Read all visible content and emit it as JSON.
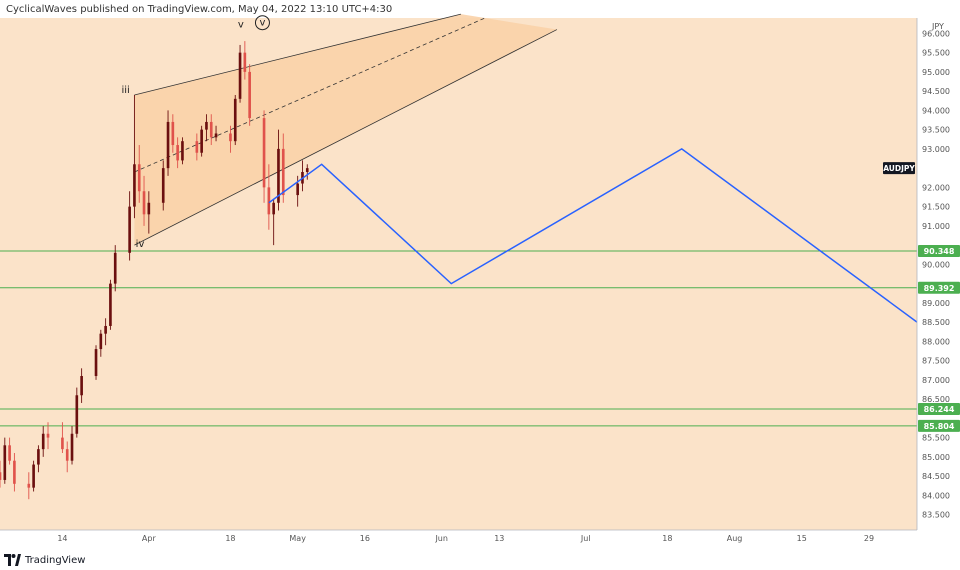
{
  "header": {
    "published_text": "CyclicalWaves published on TradingView.com, May 04, 2022 13:10 UTC+4:30"
  },
  "footer": {
    "brand": "TradingView"
  },
  "colors": {
    "background": "#fbe3c9",
    "channel_fill": "#f9d2a8",
    "up_candle": "#6b0f0f",
    "down_candle": "#e0524b",
    "projection": "#2962ff",
    "support_line": "#4caf50",
    "label_green": "#4caf50",
    "symbol_badge": "#131722"
  },
  "chart_data": {
    "type": "candlestick",
    "symbol": "AUDJPY",
    "currency": "JPY",
    "ylim": [
      83.1,
      96.4
    ],
    "y_ticks": [
      83.5,
      84.0,
      84.5,
      85.0,
      85.5,
      86.0,
      86.5,
      87.0,
      87.5,
      88.0,
      88.5,
      89.0,
      89.5,
      90.0,
      90.5,
      91.0,
      91.5,
      92.0,
      92.5,
      93.0,
      93.5,
      94.0,
      94.5,
      95.0,
      95.5,
      96.0
    ],
    "y_tick_labels": [
      "83.500",
      "84.000",
      "84.500",
      "85.000",
      "85.500",
      "86.000",
      "86.500",
      "87.000",
      "87.500",
      "88.000",
      "88.500",
      "89.000",
      "89.500",
      "90.000",
      "90.500",
      "91.000",
      "91.500",
      "92.000",
      "92.500",
      "93.000",
      "93.500",
      "94.000",
      "94.500",
      "95.000",
      "95.500",
      "96.000"
    ],
    "x_start": "2022-03-01",
    "x_end": "2022-09-08",
    "x_ticks": [
      {
        "date": "2022-03-14",
        "label": "14"
      },
      {
        "date": "2022-04-01",
        "label": "Apr"
      },
      {
        "date": "2022-04-18",
        "label": "18"
      },
      {
        "date": "2022-05-02",
        "label": "May"
      },
      {
        "date": "2022-05-16",
        "label": "16"
      },
      {
        "date": "2022-06-01",
        "label": "Jun"
      },
      {
        "date": "2022-06-13",
        "label": "13"
      },
      {
        "date": "2022-07-01",
        "label": "Jul"
      },
      {
        "date": "2022-07-18",
        "label": "18"
      },
      {
        "date": "2022-08-01",
        "label": "Aug"
      },
      {
        "date": "2022-08-15",
        "label": "15"
      },
      {
        "date": "2022-08-29",
        "label": "29"
      }
    ],
    "candles": [
      {
        "t": "2022-03-01",
        "o": 84.6,
        "h": 84.9,
        "l": 84.2,
        "c": 84.4
      },
      {
        "t": "2022-03-02",
        "o": 84.4,
        "h": 85.5,
        "l": 84.3,
        "c": 85.3
      },
      {
        "t": "2022-03-03",
        "o": 85.3,
        "h": 85.5,
        "l": 84.8,
        "c": 84.9
      },
      {
        "t": "2022-03-04",
        "o": 84.9,
        "h": 85.1,
        "l": 84.1,
        "c": 84.3
      },
      {
        "t": "2022-03-07",
        "o": 84.3,
        "h": 84.6,
        "l": 83.9,
        "c": 84.2
      },
      {
        "t": "2022-03-08",
        "o": 84.2,
        "h": 84.9,
        "l": 84.1,
        "c": 84.8
      },
      {
        "t": "2022-03-09",
        "o": 84.8,
        "h": 85.3,
        "l": 84.6,
        "c": 85.2
      },
      {
        "t": "2022-03-10",
        "o": 85.2,
        "h": 85.8,
        "l": 85.0,
        "c": 85.6
      },
      {
        "t": "2022-03-11",
        "o": 85.6,
        "h": 85.9,
        "l": 85.2,
        "c": 85.5
      },
      {
        "t": "2022-03-14",
        "o": 85.5,
        "h": 85.9,
        "l": 85.1,
        "c": 85.2
      },
      {
        "t": "2022-03-15",
        "o": 85.2,
        "h": 85.4,
        "l": 84.6,
        "c": 84.9
      },
      {
        "t": "2022-03-16",
        "o": 84.9,
        "h": 85.8,
        "l": 84.8,
        "c": 85.6
      },
      {
        "t": "2022-03-17",
        "o": 85.6,
        "h": 86.8,
        "l": 85.5,
        "c": 86.6
      },
      {
        "t": "2022-03-18",
        "o": 86.6,
        "h": 87.3,
        "l": 86.4,
        "c": 87.1
      },
      {
        "t": "2022-03-21",
        "o": 87.1,
        "h": 87.9,
        "l": 87.0,
        "c": 87.8
      },
      {
        "t": "2022-03-22",
        "o": 87.8,
        "h": 88.3,
        "l": 87.6,
        "c": 88.2
      },
      {
        "t": "2022-03-23",
        "o": 88.2,
        "h": 88.6,
        "l": 87.9,
        "c": 88.4
      },
      {
        "t": "2022-03-24",
        "o": 88.4,
        "h": 89.6,
        "l": 88.3,
        "c": 89.5
      },
      {
        "t": "2022-03-25",
        "o": 89.5,
        "h": 90.5,
        "l": 89.3,
        "c": 90.3
      },
      {
        "t": "2022-03-28",
        "o": 90.3,
        "h": 91.9,
        "l": 90.1,
        "c": 91.5
      },
      {
        "t": "2022-03-29",
        "o": 91.5,
        "h": 94.4,
        "l": 91.2,
        "c": 92.6
      },
      {
        "t": "2022-03-30",
        "o": 92.6,
        "h": 93.1,
        "l": 91.6,
        "c": 91.9
      },
      {
        "t": "2022-03-31",
        "o": 91.9,
        "h": 92.3,
        "l": 91.0,
        "c": 91.3
      },
      {
        "t": "2022-04-01",
        "o": 91.3,
        "h": 91.9,
        "l": 90.8,
        "c": 91.6
      },
      {
        "t": "2022-04-04",
        "o": 91.6,
        "h": 92.7,
        "l": 91.4,
        "c": 92.5
      },
      {
        "t": "2022-04-05",
        "o": 92.5,
        "h": 94.0,
        "l": 92.3,
        "c": 93.7
      },
      {
        "t": "2022-04-06",
        "o": 93.7,
        "h": 93.9,
        "l": 92.9,
        "c": 93.1
      },
      {
        "t": "2022-04-07",
        "o": 93.1,
        "h": 93.3,
        "l": 92.5,
        "c": 92.7
      },
      {
        "t": "2022-04-08",
        "o": 92.7,
        "h": 93.3,
        "l": 92.6,
        "c": 93.2
      },
      {
        "t": "2022-04-11",
        "o": 93.2,
        "h": 93.4,
        "l": 92.7,
        "c": 92.9
      },
      {
        "t": "2022-04-12",
        "o": 92.9,
        "h": 93.6,
        "l": 92.8,
        "c": 93.5
      },
      {
        "t": "2022-04-13",
        "o": 93.5,
        "h": 93.9,
        "l": 93.2,
        "c": 93.7
      },
      {
        "t": "2022-04-14",
        "o": 93.7,
        "h": 93.9,
        "l": 93.1,
        "c": 93.3
      },
      {
        "t": "2022-04-15",
        "o": 93.3,
        "h": 93.6,
        "l": 93.2,
        "c": 93.4
      },
      {
        "t": "2022-04-18",
        "o": 93.4,
        "h": 93.6,
        "l": 92.9,
        "c": 93.2
      },
      {
        "t": "2022-04-19",
        "o": 93.2,
        "h": 94.4,
        "l": 93.1,
        "c": 94.3
      },
      {
        "t": "2022-04-20",
        "o": 94.3,
        "h": 95.7,
        "l": 94.2,
        "c": 95.5
      },
      {
        "t": "2022-04-21",
        "o": 95.5,
        "h": 95.8,
        "l": 94.8,
        "c": 95.0
      },
      {
        "t": "2022-04-22",
        "o": 95.0,
        "h": 95.2,
        "l": 93.6,
        "c": 93.8
      },
      {
        "t": "2022-04-25",
        "o": 93.8,
        "h": 94.0,
        "l": 91.6,
        "c": 92.0
      },
      {
        "t": "2022-04-26",
        "o": 92.0,
        "h": 92.6,
        "l": 90.9,
        "c": 91.3
      },
      {
        "t": "2022-04-27",
        "o": 91.3,
        "h": 91.7,
        "l": 90.5,
        "c": 91.6
      },
      {
        "t": "2022-04-28",
        "o": 91.6,
        "h": 93.5,
        "l": 91.4,
        "c": 93.0
      },
      {
        "t": "2022-04-29",
        "o": 93.0,
        "h": 93.4,
        "l": 91.6,
        "c": 91.8
      },
      {
        "t": "2022-05-02",
        "o": 91.8,
        "h": 92.3,
        "l": 91.5,
        "c": 92.1
      },
      {
        "t": "2022-05-03",
        "o": 92.1,
        "h": 92.7,
        "l": 91.9,
        "c": 92.4
      },
      {
        "t": "2022-05-04",
        "o": 92.4,
        "h": 92.6,
        "l": 92.2,
        "c": 92.5
      }
    ],
    "channel": {
      "lower": {
        "p1": {
          "t": "2022-03-29",
          "y": 90.5
        },
        "p2": {
          "t": "2022-06-25",
          "y": 96.1
        }
      },
      "upper": {
        "p1": {
          "t": "2022-03-29",
          "y": 94.4
        },
        "p2": {
          "t": "2022-06-05",
          "y": 96.5
        }
      },
      "mid_dashed": {
        "p1": {
          "t": "2022-03-29",
          "y": 92.4
        },
        "p2": {
          "t": "2022-06-10",
          "y": 96.4
        }
      }
    },
    "projection_path": [
      {
        "t": "2022-04-26",
        "y": 91.6
      },
      {
        "t": "2022-05-07",
        "y": 92.6
      },
      {
        "t": "2022-06-03",
        "y": 89.5
      },
      {
        "t": "2022-07-21",
        "y": 93.0
      },
      {
        "t": "2022-09-08",
        "y": 88.5
      }
    ],
    "horizontal_levels": [
      {
        "value": 90.348,
        "label": "90.348"
      },
      {
        "value": 89.392,
        "label": "89.392"
      },
      {
        "value": 86.244,
        "label": "86.244"
      },
      {
        "value": 85.804,
        "label": "85.804"
      }
    ],
    "wave_labels": [
      {
        "text": "iii",
        "t": "2022-03-28",
        "y": 94.4
      },
      {
        "text": "iv",
        "t": "2022-03-31",
        "y": 90.4
      },
      {
        "text": "v",
        "t": "2022-04-21",
        "y": 96.1
      },
      {
        "text": "v",
        "t": "2022-04-23",
        "y": 96.2,
        "circled": true
      }
    ],
    "current_price_label": "AUDJPY"
  }
}
